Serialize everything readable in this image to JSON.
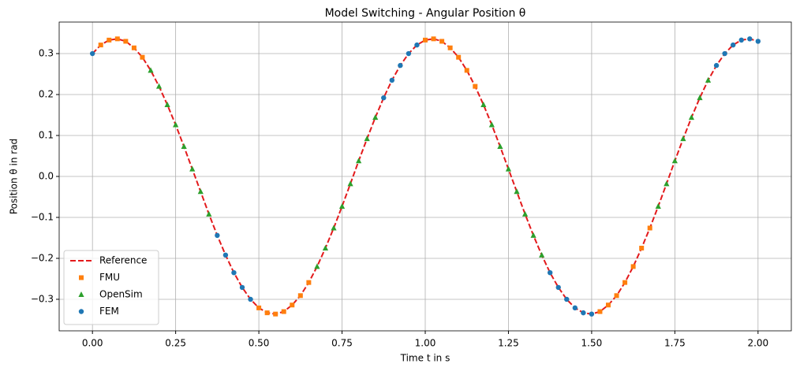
{
  "chart_data": {
    "type": "line",
    "title": "Model Switching - Angular Position θ",
    "xlabel": "Time t in s",
    "ylabel": "Position θ in rad",
    "xlim": [
      -0.1,
      2.1
    ],
    "ylim": [
      -0.377,
      0.377
    ],
    "xticks": [
      {
        "value": 0,
        "label": "0.00"
      },
      {
        "value": 0.25,
        "label": "0.25"
      },
      {
        "value": 0.5,
        "label": "0.50"
      },
      {
        "value": 0.75,
        "label": "0.75"
      },
      {
        "value": 1,
        "label": "1.00"
      },
      {
        "value": 1.25,
        "label": "1.25"
      },
      {
        "value": 1.5,
        "label": "1.50"
      },
      {
        "value": 1.75,
        "label": "1.75"
      },
      {
        "value": 2,
        "label": "2.00"
      }
    ],
    "yticks": [
      {
        "value": -0.3,
        "label": "−0.3"
      },
      {
        "value": -0.2,
        "label": "−0.2"
      },
      {
        "value": -0.1,
        "label": "−0.1"
      },
      {
        "value": 0,
        "label": "0.0"
      },
      0.1,
      0.2,
      0.3
    ],
    "grid": true,
    "legend": "lower left",
    "series": [
      {
        "name": "Reference",
        "color": "#e31a1c",
        "linestyle": "dashed",
        "x": [
          0,
          0.025,
          0.05,
          0.075,
          0.1,
          0.125,
          0.15,
          0.175,
          0.2,
          0.225,
          0.25,
          0.275,
          0.3,
          0.325,
          0.35,
          0.375,
          0.4,
          0.425,
          0.45,
          0.475,
          0.5,
          0.525,
          0.55,
          0.575,
          0.6,
          0.625,
          0.65,
          0.675,
          0.7,
          0.725,
          0.75,
          0.775,
          0.8,
          0.825,
          0.85,
          0.875,
          0.9,
          0.925,
          0.95,
          0.975,
          1,
          1.025,
          1.05,
          1.075,
          1.1,
          1.125,
          1.15,
          1.175,
          1.2,
          1.225,
          1.25,
          1.275,
          1.3,
          1.325,
          1.35,
          1.375,
          1.4,
          1.425,
          1.45,
          1.475,
          1.5,
          1.525,
          1.55,
          1.575,
          1.6,
          1.625,
          1.65,
          1.675,
          1.7,
          1.725,
          1.75,
          1.775,
          1.8,
          1.825,
          1.85,
          1.875,
          1.9,
          1.925,
          1.95,
          1.975,
          2
        ],
        "values": [
          0.3,
          0.321,
          0.333,
          0.336,
          0.33,
          0.314,
          0.291,
          0.259,
          0.22,
          0.175,
          0.126,
          0.073,
          0.018,
          -0.037,
          -0.092,
          -0.144,
          -0.192,
          -0.235,
          -0.271,
          -0.3,
          -0.321,
          -0.333,
          -0.336,
          -0.33,
          -0.314,
          -0.291,
          -0.259,
          -0.22,
          -0.175,
          -0.126,
          -0.073,
          -0.018,
          0.038,
          0.092,
          0.144,
          0.192,
          0.235,
          0.271,
          0.3,
          0.321,
          0.333,
          0.336,
          0.33,
          0.314,
          0.291,
          0.259,
          0.22,
          0.175,
          0.126,
          0.073,
          0.018,
          -0.037,
          -0.092,
          -0.144,
          -0.192,
          -0.235,
          -0.271,
          -0.3,
          -0.321,
          -0.333,
          -0.336,
          -0.33,
          -0.314,
          -0.291,
          -0.259,
          -0.22,
          -0.175,
          -0.126,
          -0.073,
          -0.018,
          0.038,
          0.092,
          0.144,
          0.192,
          0.235,
          0.271,
          0.3,
          0.321,
          0.333,
          0.336,
          0.33
        ]
      },
      {
        "name": "FMU",
        "color": "#ff7f0e",
        "marker": "square",
        "x": [
          0.025,
          0.05,
          0.075,
          0.1,
          0.125,
          0.15,
          0.5,
          0.525,
          0.55,
          0.575,
          0.6,
          0.625,
          0.65,
          1,
          1.025,
          1.05,
          1.075,
          1.1,
          1.125,
          1.15,
          1.525,
          1.55,
          1.575,
          1.6,
          1.625,
          1.65,
          1.675
        ],
        "values": [
          0.321,
          0.333,
          0.336,
          0.33,
          0.314,
          0.291,
          -0.321,
          -0.333,
          -0.336,
          -0.33,
          -0.314,
          -0.291,
          -0.259,
          0.333,
          0.336,
          0.33,
          0.314,
          0.291,
          0.259,
          0.22,
          -0.33,
          -0.314,
          -0.291,
          -0.259,
          -0.22,
          -0.175,
          -0.126
        ]
      },
      {
        "name": "OpenSim",
        "color": "#2ca02c",
        "marker": "triangle",
        "x": [
          0.175,
          0.2,
          0.225,
          0.25,
          0.275,
          0.3,
          0.325,
          0.35,
          0.675,
          0.7,
          0.725,
          0.75,
          0.775,
          0.8,
          0.825,
          0.85,
          1.175,
          1.2,
          1.225,
          1.25,
          1.275,
          1.3,
          1.325,
          1.35,
          1.7,
          1.725,
          1.75,
          1.775,
          1.8,
          1.825,
          1.85
        ],
        "values": [
          0.259,
          0.22,
          0.175,
          0.126,
          0.073,
          0.018,
          -0.037,
          -0.092,
          -0.22,
          -0.175,
          -0.126,
          -0.073,
          -0.018,
          0.038,
          0.092,
          0.144,
          0.175,
          0.126,
          0.073,
          0.018,
          -0.037,
          -0.092,
          -0.144,
          -0.192,
          -0.073,
          -0.018,
          0.038,
          0.092,
          0.144,
          0.192,
          0.235
        ]
      },
      {
        "name": "FEM",
        "color": "#1f77b4",
        "marker": "circle",
        "x": [
          0,
          0.375,
          0.4,
          0.425,
          0.45,
          0.475,
          0.875,
          0.9,
          0.925,
          0.95,
          0.975,
          1.375,
          1.4,
          1.425,
          1.45,
          1.475,
          1.5,
          1.875,
          1.9,
          1.925,
          1.95,
          1.975,
          2
        ],
        "values": [
          0.3,
          -0.144,
          -0.192,
          -0.235,
          -0.271,
          -0.3,
          0.192,
          0.235,
          0.271,
          0.3,
          0.321,
          -0.235,
          -0.271,
          -0.3,
          -0.321,
          -0.333,
          -0.336,
          0.271,
          0.3,
          0.321,
          0.333,
          0.336,
          0.33
        ]
      }
    ]
  }
}
